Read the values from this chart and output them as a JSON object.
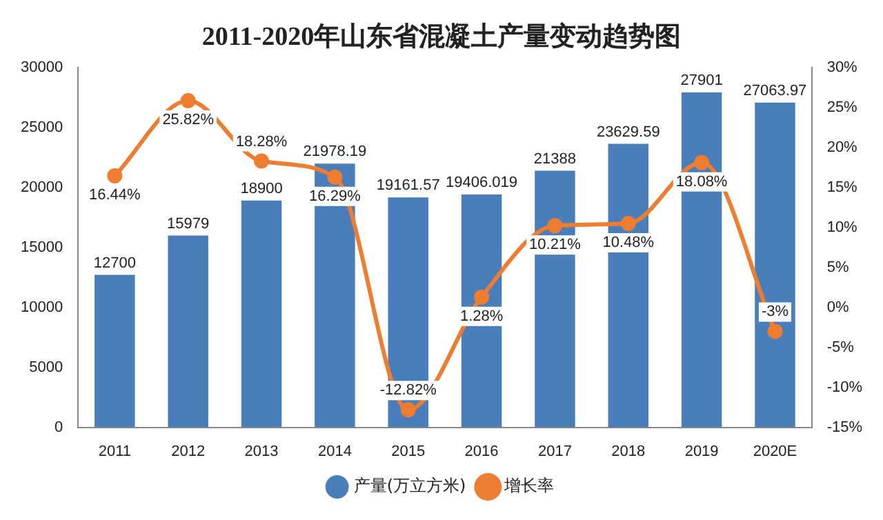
{
  "chart_data": {
    "type": "bar",
    "title": "2011-2020年山东省混凝土产量变动趋势图",
    "categories": [
      "2011",
      "2012",
      "2013",
      "2014",
      "2015",
      "2016",
      "2017",
      "2018",
      "2019",
      "2020E"
    ],
    "series": [
      {
        "name": "产量(万立方米)",
        "color": "#4a7ebb",
        "values": [
          12700,
          15979,
          18900,
          21978.19,
          19161.57,
          19406.019,
          21388,
          23629.59,
          27901,
          27063.97
        ]
      },
      {
        "name": "增长率",
        "type": "line",
        "axis": "y2",
        "color": "#ed7d31",
        "marker": "circle",
        "values": [
          16.44,
          25.82,
          18.28,
          16.29,
          -12.82,
          1.28,
          10.21,
          10.48,
          18.08,
          -3
        ],
        "value_labels": [
          "16.44%",
          "25.82%",
          "18.28%",
          "16.29%",
          "-12.82%",
          "1.28%",
          "10.21%",
          "10.48%",
          "18.08%",
          "-3%"
        ]
      }
    ],
    "data_labels": true,
    "ylim": [
      0,
      30000
    ],
    "yticks": [
      0,
      5000,
      10000,
      15000,
      20000,
      25000,
      30000
    ],
    "y2lim": [
      -15,
      30
    ],
    "y2ticks": [
      {
        "value": -15,
        "label": "-15%"
      },
      {
        "value": -10,
        "label": "-10%"
      },
      {
        "value": -5,
        "label": "-5%"
      },
      {
        "value": 0,
        "label": "0%"
      },
      {
        "value": 5,
        "label": "5%"
      },
      {
        "value": 10,
        "label": "10%"
      },
      {
        "value": 15,
        "label": "15%"
      },
      {
        "value": 20,
        "label": "20%"
      },
      {
        "value": 25,
        "label": "25%"
      },
      {
        "value": 30,
        "label": "30%"
      }
    ],
    "legend": "bottom"
  }
}
